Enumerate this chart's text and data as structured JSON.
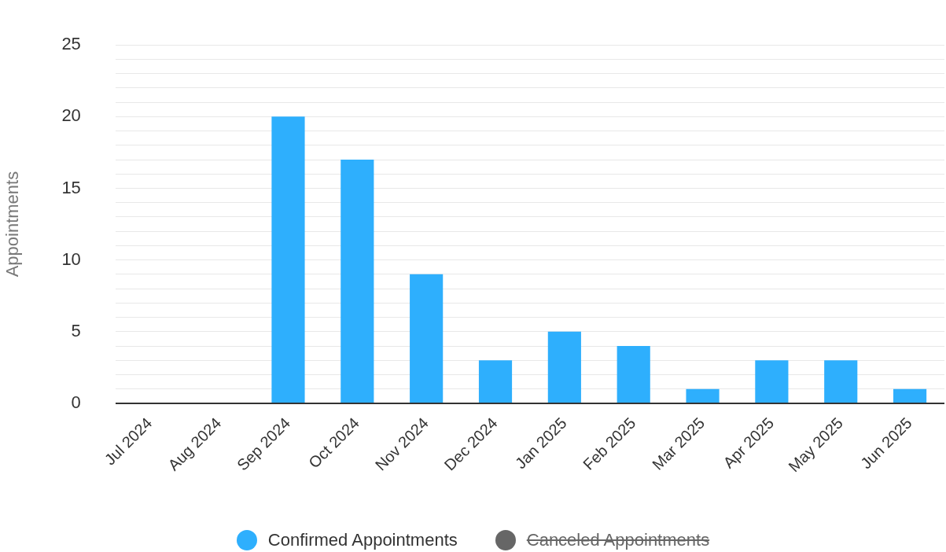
{
  "chart_data": {
    "type": "bar",
    "ylabel": "Appointments",
    "categories": [
      "Jul 2024",
      "Aug 2024",
      "Sep 2024",
      "Oct 2024",
      "Nov 2024",
      "Dec 2024",
      "Jan 2025",
      "Feb 2025",
      "Mar 2025",
      "Apr 2025",
      "May 2025",
      "Jun 2025"
    ],
    "series": [
      {
        "name": "Confirmed Appointments",
        "color": "#2eaffd",
        "values": [
          0,
          0,
          20,
          17,
          9,
          3,
          5,
          4,
          1,
          3,
          3,
          1
        ]
      },
      {
        "name": "Canceled Appointments",
        "color": "#666666",
        "values": [
          null,
          null,
          null,
          null,
          null,
          null,
          null,
          null,
          null,
          null,
          null,
          null
        ]
      }
    ],
    "ylim": [
      0,
      25
    ],
    "yticks": [
      0,
      {
        "value": 1,
        "label": null
      },
      {
        "value": 2,
        "label": null
      },
      {
        "value": 3,
        "label": null
      },
      {
        "value": 4,
        "label": null
      },
      5,
      {
        "value": 6,
        "label": null
      },
      {
        "value": 7,
        "label": null
      },
      {
        "value": 8,
        "label": null
      },
      {
        "value": 9,
        "label": null
      },
      10,
      {
        "value": 11,
        "label": null
      },
      {
        "value": 12,
        "label": null
      },
      {
        "value": 13,
        "label": null
      },
      {
        "value": 14,
        "label": null
      },
      15,
      {
        "value": 16,
        "label": null
      },
      {
        "value": 17,
        "label": null
      },
      {
        "value": 18,
        "label": null
      },
      {
        "value": 19,
        "label": null
      },
      20,
      {
        "value": 21,
        "label": null
      },
      {
        "value": 22,
        "label": null
      },
      {
        "value": 23,
        "label": null
      },
      {
        "value": 24,
        "label": null
      },
      25
    ],
    "grid": "y",
    "legend": "bottom"
  }
}
